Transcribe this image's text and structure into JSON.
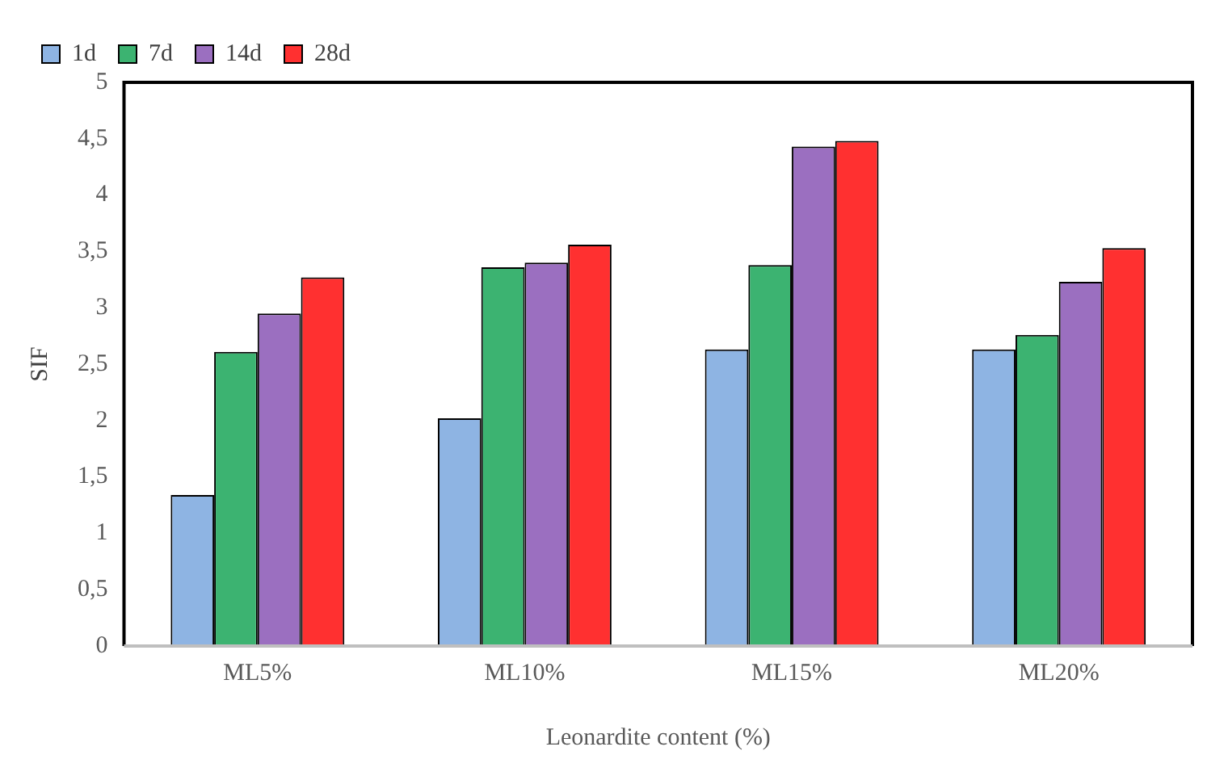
{
  "chart_data": {
    "type": "bar",
    "xlabel": "Leonardite content (%)",
    "ylabel": "SIF",
    "categories": [
      "ML5%",
      "ML10%",
      "ML15%",
      "ML20%"
    ],
    "series": [
      {
        "name": "1d",
        "color": "#8eb4e3",
        "values": [
          1.34,
          2.02,
          2.63,
          2.63
        ]
      },
      {
        "name": "7d",
        "color": "#3cb371",
        "values": [
          2.61,
          3.36,
          3.38,
          2.76
        ]
      },
      {
        "name": "14d",
        "color": "#9b6fc0",
        "values": [
          2.95,
          3.4,
          4.43,
          3.23
        ]
      },
      {
        "name": "28d",
        "color": "#ff3030",
        "values": [
          3.27,
          3.56,
          4.48,
          3.53
        ]
      }
    ],
    "ylim": [
      0,
      5
    ],
    "yticks": [
      0,
      {
        "value": 0.5,
        "label": "0,5"
      },
      1,
      {
        "value": 1.5,
        "label": "1,5"
      },
      2,
      {
        "value": 2.5,
        "label": "2,5"
      },
      3,
      {
        "value": 3.5,
        "label": "3,5"
      },
      4,
      {
        "value": 4.5,
        "label": "4,5"
      },
      5
    ],
    "grid": false,
    "legend": "top left"
  }
}
